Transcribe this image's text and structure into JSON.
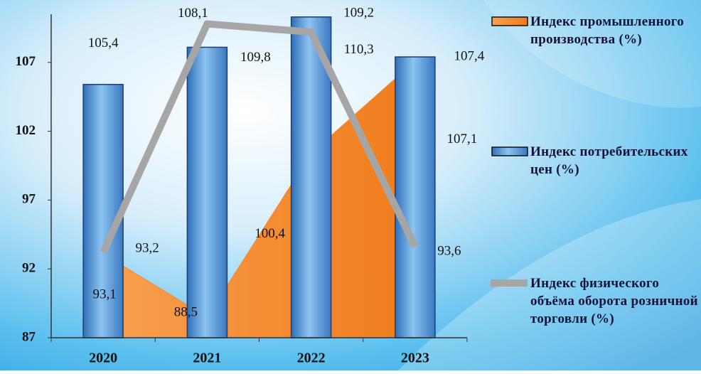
{
  "chart_data": {
    "type": "combo",
    "categories": [
      "2020",
      "2021",
      "2022",
      "2023"
    ],
    "series": [
      {
        "name": "Индекс промышленного производства (%)",
        "type": "area",
        "color": "#f58a2c",
        "values": [
          93.1,
          88.5,
          100.4,
          107.1
        ]
      },
      {
        "name": "Индекс потребительских цен (%)",
        "type": "bar",
        "color": "#5b9bd5",
        "values": [
          105.4,
          108.1,
          110.3,
          107.4
        ]
      },
      {
        "name": "Индекс физического объёма оборота розничной торговли (%)",
        "type": "line",
        "color": "#a6a6a6",
        "values": [
          93.2,
          109.8,
          109.2,
          93.6
        ]
      }
    ],
    "ylim": [
      87,
      110.5
    ],
    "yticks": [
      87,
      92,
      97,
      102,
      107
    ]
  }
}
